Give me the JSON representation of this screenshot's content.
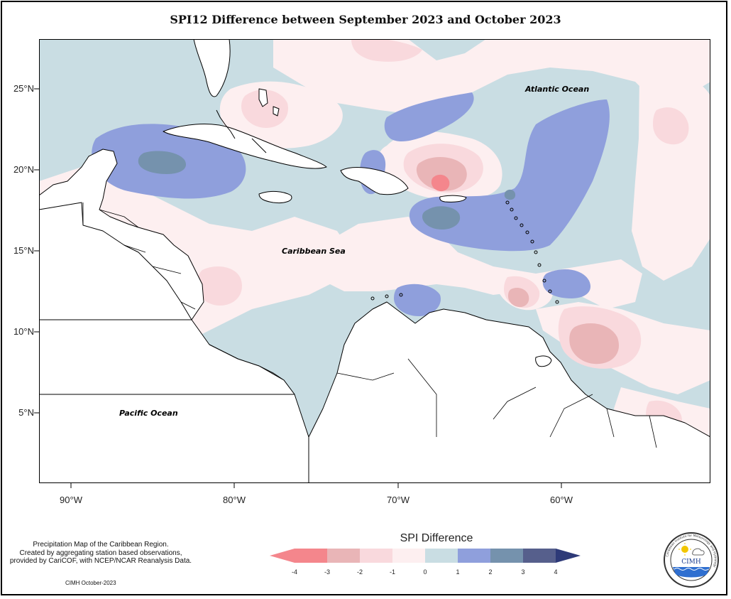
{
  "title": "SPI12 Difference between September 2023 and October 2023",
  "map": {
    "labels": {
      "atlantic": "Atlantic Ocean",
      "caribbean": "Caribbean Sea",
      "pacific": "Pacific Ocean"
    },
    "y_ticks": [
      "25°N",
      "20°N",
      "15°N",
      "10°N",
      "5°N"
    ],
    "x_ticks": [
      "90°W",
      "80°W",
      "70°W",
      "60°W"
    ],
    "lon_range": [
      -92,
      -51
    ],
    "lat_range": [
      0.8,
      28.2
    ]
  },
  "legend": {
    "title": "SPI Difference",
    "ticks": [
      "-4",
      "-3",
      "-2",
      "-1",
      "0",
      "1",
      "2",
      "3",
      "4"
    ],
    "colors": [
      "#f4868c",
      "#e9b5b7",
      "#f9d9dd",
      "#fdeff0",
      "#c9dde3",
      "#8f9fdc",
      "#7592ad",
      "#565f8c",
      "#2e3a78"
    ]
  },
  "credit": {
    "line1": "Precipitation Map of the Caribbean Region.",
    "line2": "Created by aggregating station based observations,",
    "line3": "provided by CariCOF, with NCEP/NCAR Reanalysis Data.",
    "date": "CIMH October-2023"
  },
  "logo": {
    "text": "CIMH",
    "ring_text": "Caribbean Institute for Meteorology and Hydrology"
  }
}
